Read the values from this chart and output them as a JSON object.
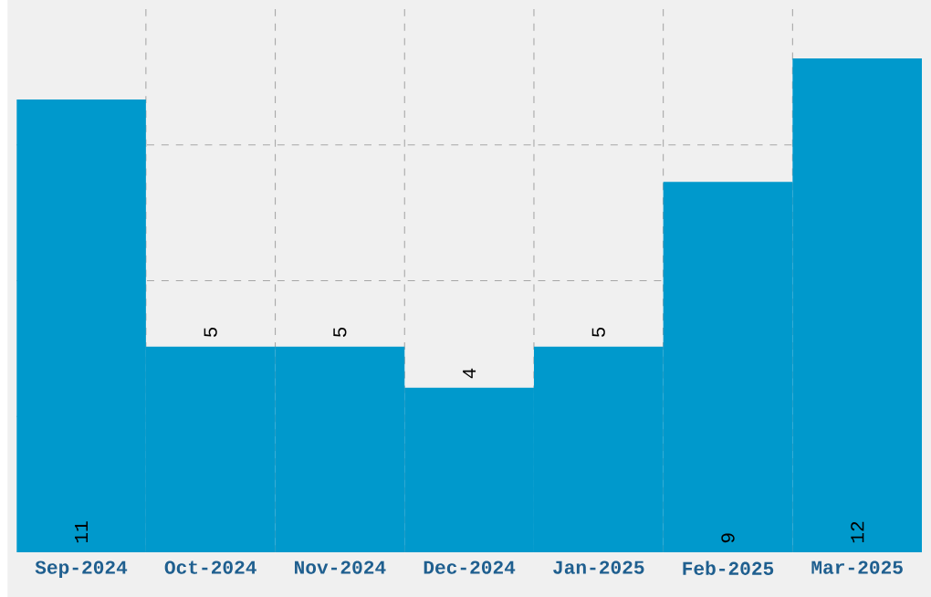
{
  "chart_data": {
    "type": "bar",
    "categories": [
      "Sep-2024",
      "Oct-2024",
      "Nov-2024",
      "Dec-2024",
      "Jan-2025",
      "Feb-2025",
      "Mar-2025"
    ],
    "values": [
      11,
      5,
      5,
      4,
      5,
      9,
      12
    ],
    "color": "#0099cc",
    "data_labels": true,
    "grid": true,
    "tick_labels": "x",
    "ylim": [
      0,
      13.2
    ],
    "yticks": [
      {
        "value": 3.3,
        "label": null
      },
      {
        "value": 6.6,
        "label": null
      },
      {
        "value": 9.9,
        "label": null
      }
    ]
  }
}
